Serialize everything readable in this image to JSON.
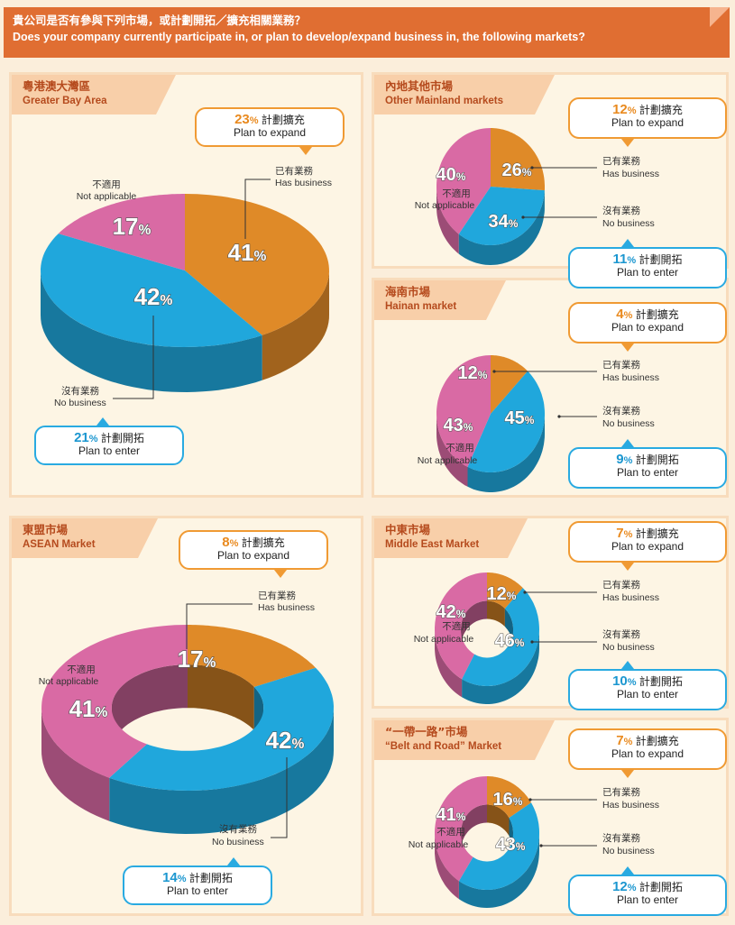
{
  "header": {
    "title_zh": "貴公司是否有參與下列市場，或計劃開拓／擴充相關業務？",
    "title_en": "Does your company currently participate in, or plan to develop/expand business in, the following markets?"
  },
  "labels": {
    "has_zh": "已有業務",
    "has_en": "Has business",
    "no_zh": "沒有業務",
    "no_en": "No business",
    "na_zh": "不適用",
    "na_en": "Not applicable",
    "expand": "計劃擴充",
    "expand_en": "Plan to expand",
    "enter": "計劃開拓",
    "enter_en": "Plan to enter",
    "pct": "%"
  },
  "colors": {
    "has": "#df8a28",
    "no": "#20a7dc",
    "na": "#d96aa4",
    "orange": "#f09a33",
    "blue": "#29aae1"
  },
  "chart_data": [
    {
      "type": "pie",
      "title_zh": "粵港澳大灣區",
      "title_en": "Greater Bay Area",
      "slices": [
        {
          "label": "Has business",
          "value": 41
        },
        {
          "label": "No business",
          "value": 42
        },
        {
          "label": "Not applicable",
          "value": 17
        }
      ],
      "plan_to_expand": 23,
      "plan_to_enter": 21
    },
    {
      "type": "pie",
      "title_zh": "內地其他市場",
      "title_en": "Other Mainland markets",
      "slices": [
        {
          "label": "Has business",
          "value": 26
        },
        {
          "label": "No business",
          "value": 34
        },
        {
          "label": "Not applicable",
          "value": 40
        }
      ],
      "plan_to_expand": 12,
      "plan_to_enter": 11
    },
    {
      "type": "pie",
      "title_zh": "海南市場",
      "title_en": "Hainan market",
      "slices": [
        {
          "label": "Has business",
          "value": 12
        },
        {
          "label": "No business",
          "value": 45
        },
        {
          "label": "Not applicable",
          "value": 43
        }
      ],
      "plan_to_expand": 4,
      "plan_to_enter": 9
    },
    {
      "type": "pie",
      "title_zh": "東盟市場",
      "title_en": "ASEAN Market",
      "slices": [
        {
          "label": "Has business",
          "value": 17
        },
        {
          "label": "No business",
          "value": 42
        },
        {
          "label": "Not applicable",
          "value": 41
        }
      ],
      "plan_to_expand": 8,
      "plan_to_enter": 14
    },
    {
      "type": "pie",
      "title_zh": "中東市場",
      "title_en": "Middle East Market",
      "slices": [
        {
          "label": "Has business",
          "value": 12
        },
        {
          "label": "No business",
          "value": 46
        },
        {
          "label": "Not applicable",
          "value": 42
        }
      ],
      "plan_to_expand": 7,
      "plan_to_enter": 10
    },
    {
      "type": "pie",
      "title_zh": "“一帶一路”市場",
      "title_en": "“Belt and Road” Market",
      "slices": [
        {
          "label": "Has business",
          "value": 16
        },
        {
          "label": "No business",
          "value": 43
        },
        {
          "label": "Not applicable",
          "value": 41
        }
      ],
      "plan_to_expand": 7,
      "plan_to_enter": 12
    }
  ]
}
